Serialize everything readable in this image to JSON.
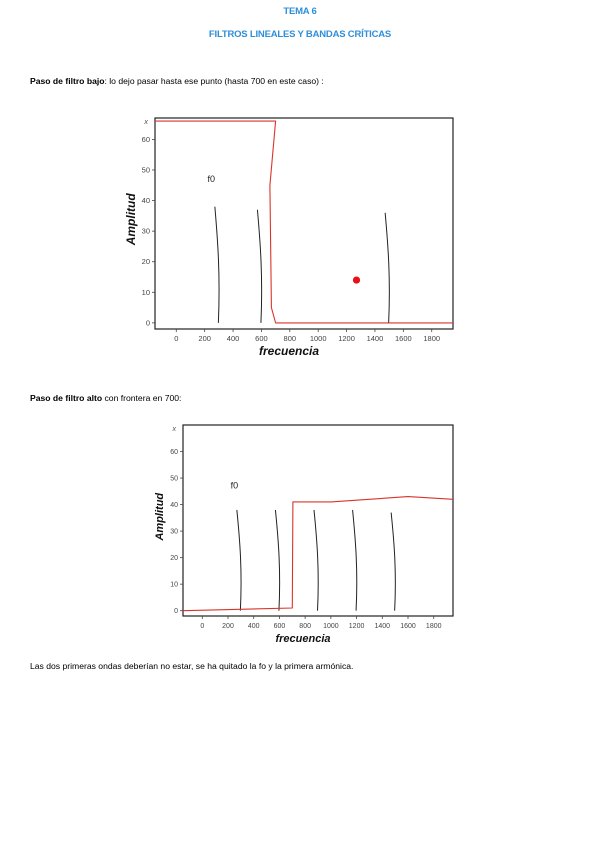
{
  "document": {
    "title": "TEMA 6",
    "subtitle": "FILTROS LINEALES Y BANDAS CRÍTICAS",
    "section1": {
      "bold": "Paso de filtro bajo",
      "text": ": lo dejo pasar hasta ese punto (hasta 700 en este caso) :"
    },
    "section2": {
      "bold": "Paso de filtro alto",
      "text": " con frontera en 700:"
    },
    "conclusion": "Las dos primeras ondas deberían no estar, se ha quitado la fo y la primera armónica."
  },
  "colors": {
    "title": "#2e8fd8",
    "filter_line": "#d9342b",
    "marker": "#e8101a"
  },
  "chart_data": [
    {
      "type": "line",
      "title": "",
      "xlabel": "frecuencia",
      "ylabel": "Amplitud",
      "y_axis_top_label": "x",
      "xlim": [
        -150,
        1950
      ],
      "ylim": [
        -2,
        67
      ],
      "x_ticks": [
        0,
        200,
        400,
        600,
        800,
        1000,
        1200,
        1400,
        1600,
        1800
      ],
      "y_ticks": [
        0,
        10,
        20,
        30,
        40,
        50,
        60
      ],
      "annotation": "f0",
      "annotation_pos": [
        220,
        46
      ],
      "harmonics": [
        {
          "x": 300,
          "height": 38
        },
        {
          "x": 600,
          "height": 37
        },
        {
          "x": 1500,
          "height": 36
        }
      ],
      "filter_line": [
        [
          -150,
          66
        ],
        [
          700,
          66
        ],
        [
          660,
          45
        ],
        [
          670,
          5
        ],
        [
          700,
          0
        ],
        [
          1950,
          0
        ]
      ],
      "marker": [
        1270,
        14
      ]
    },
    {
      "type": "line",
      "title": "",
      "xlabel": "frecuencia",
      "ylabel": "Amplitud",
      "y_axis_top_label": "x",
      "xlim": [
        -150,
        1950
      ],
      "ylim": [
        -2,
        70
      ],
      "x_ticks": [
        0,
        200,
        400,
        600,
        800,
        1000,
        1200,
        1400,
        1600,
        1800
      ],
      "y_ticks": [
        0,
        10,
        20,
        30,
        40,
        50,
        60
      ],
      "annotation": "f0",
      "annotation_pos": [
        220,
        46
      ],
      "harmonics": [
        {
          "x": 300,
          "height": 38
        },
        {
          "x": 600,
          "height": 38
        },
        {
          "x": 900,
          "height": 38
        },
        {
          "x": 1200,
          "height": 38
        },
        {
          "x": 1500,
          "height": 37
        }
      ],
      "filter_line": [
        [
          -150,
          0
        ],
        [
          700,
          1
        ],
        [
          705,
          41
        ],
        [
          1000,
          41
        ],
        [
          1600,
          43
        ],
        [
          1950,
          42
        ]
      ]
    }
  ]
}
